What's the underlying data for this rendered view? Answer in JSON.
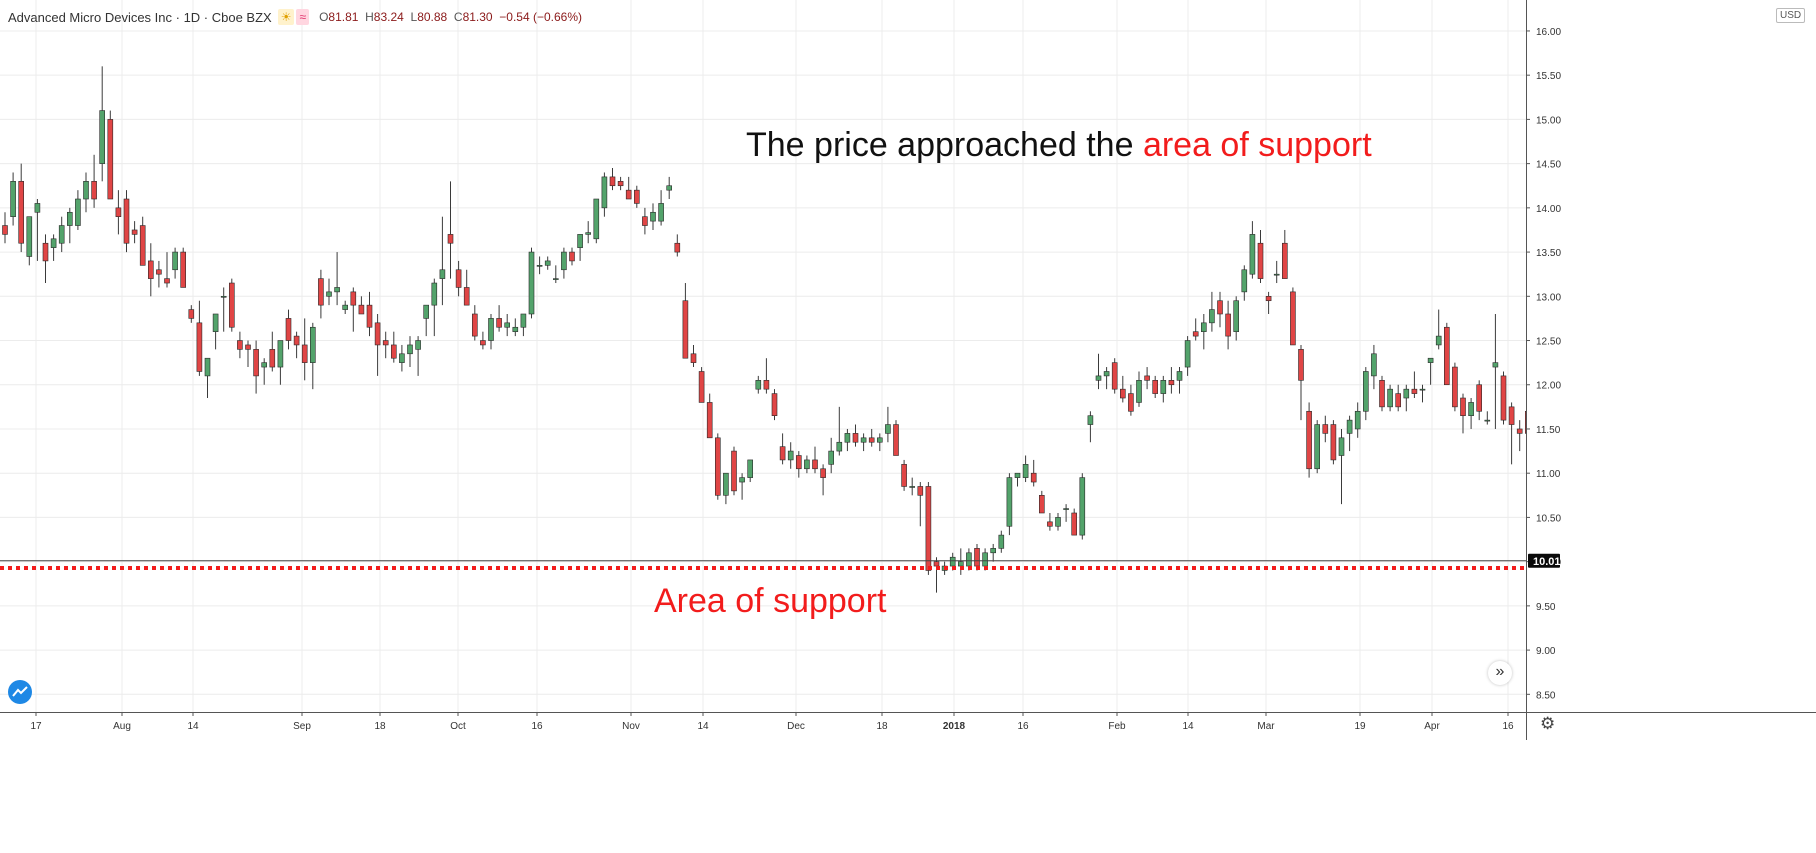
{
  "header": {
    "symbol": "Advanced Micro Devices Inc · 1D · Cboe BZX",
    "sun_icon": "sun-icon",
    "wave_icon": "wave-icon",
    "o_key": "O",
    "o_val": "81.81",
    "h_key": "H",
    "h_val": "83.24",
    "l_key": "L",
    "l_val": "80.88",
    "c_key": "C",
    "c_val": "81.30",
    "change": "−0.54 (−0.66%)"
  },
  "currency": "USD",
  "annotations": {
    "top_prefix": "The price approached the ",
    "top_highlight": "area of support",
    "support_label": "Area of support"
  },
  "colors": {
    "up": "#53a36b",
    "down": "#e04545",
    "annotation_red": "#f21c1c"
  },
  "chart_data": {
    "type": "candlestick",
    "ylim": [
      8.3,
      16.35
    ],
    "y_ticks": [
      "8.50",
      "9.00",
      "9.50",
      "10.00",
      "10.50",
      "11.00",
      "11.50",
      "12.00",
      "12.50",
      "13.00",
      "13.50",
      "14.00",
      "14.50",
      "15.00",
      "15.50",
      "16.00"
    ],
    "x_ticks": [
      "17",
      "Aug",
      "14",
      "Sep",
      "18",
      "Oct",
      "16",
      "Nov",
      "14",
      "Dec",
      "18",
      "2018",
      "16",
      "Feb",
      "14",
      "Mar",
      "19",
      "Apr",
      "16"
    ],
    "last_price": 10.01,
    "last_price_label": "10.01",
    "support_level": 9.95,
    "support_zone": {
      "from_bar": 236,
      "to_bar": 256,
      "low": 9.0,
      "high": 10.62
    },
    "candles": [
      [
        13.8,
        13.95,
        13.6,
        13.7
      ],
      [
        13.9,
        14.4,
        13.8,
        14.3
      ],
      [
        14.3,
        14.5,
        13.5,
        13.6
      ],
      [
        13.45,
        13.9,
        13.35,
        13.9
      ],
      [
        13.95,
        14.1,
        13.4,
        14.05
      ],
      [
        13.6,
        13.7,
        13.15,
        13.4
      ],
      [
        13.55,
        13.7,
        13.4,
        13.65
      ],
      [
        13.6,
        13.9,
        13.5,
        13.8
      ],
      [
        13.8,
        14.0,
        13.6,
        13.95
      ],
      [
        13.8,
        14.2,
        13.75,
        14.1
      ],
      [
        14.1,
        14.4,
        13.95,
        14.3
      ],
      [
        14.3,
        14.6,
        14.0,
        14.1
      ],
      [
        14.5,
        15.6,
        14.3,
        15.1
      ],
      [
        15.0,
        15.1,
        14.1,
        14.1
      ],
      [
        14.0,
        14.2,
        13.7,
        13.9
      ],
      [
        14.1,
        14.2,
        13.5,
        13.6
      ],
      [
        13.75,
        13.85,
        13.6,
        13.7
      ],
      [
        13.8,
        13.9,
        13.35,
        13.35
      ],
      [
        13.4,
        13.6,
        13.0,
        13.2
      ],
      [
        13.3,
        13.4,
        13.1,
        13.25
      ],
      [
        13.2,
        13.5,
        13.1,
        13.15
      ],
      [
        13.3,
        13.55,
        13.2,
        13.5
      ],
      [
        13.5,
        13.55,
        13.1,
        13.1
      ],
      [
        12.85,
        12.9,
        12.7,
        12.75
      ],
      [
        12.7,
        12.95,
        12.1,
        12.15
      ],
      [
        12.1,
        12.3,
        11.85,
        12.3
      ],
      [
        12.6,
        12.8,
        12.4,
        12.8
      ],
      [
        13.0,
        13.1,
        12.6,
        13.0
      ],
      [
        13.15,
        13.2,
        12.6,
        12.65
      ],
      [
        12.5,
        12.6,
        12.3,
        12.4
      ],
      [
        12.45,
        12.5,
        12.2,
        12.4
      ],
      [
        12.4,
        12.5,
        11.9,
        12.1
      ],
      [
        12.2,
        12.3,
        12.0,
        12.25
      ],
      [
        12.4,
        12.6,
        12.15,
        12.2
      ],
      [
        12.2,
        12.5,
        12.0,
        12.5
      ],
      [
        12.75,
        12.85,
        12.4,
        12.5
      ],
      [
        12.55,
        12.6,
        12.3,
        12.45
      ],
      [
        12.45,
        12.75,
        12.05,
        12.25
      ],
      [
        12.25,
        12.7,
        11.95,
        12.65
      ],
      [
        13.2,
        13.3,
        12.75,
        12.9
      ],
      [
        13.0,
        13.2,
        12.9,
        13.05
      ],
      [
        13.05,
        13.5,
        12.9,
        13.1
      ],
      [
        12.85,
        12.95,
        12.8,
        12.9
      ],
      [
        13.05,
        13.1,
        12.6,
        12.9
      ],
      [
        12.9,
        13.0,
        12.8,
        12.8
      ],
      [
        12.9,
        13.05,
        12.55,
        12.65
      ],
      [
        12.7,
        12.8,
        12.1,
        12.45
      ],
      [
        12.5,
        12.6,
        12.3,
        12.45
      ],
      [
        12.45,
        12.6,
        12.25,
        12.3
      ],
      [
        12.25,
        12.45,
        12.15,
        12.35
      ],
      [
        12.35,
        12.55,
        12.2,
        12.45
      ],
      [
        12.4,
        12.55,
        12.1,
        12.5
      ],
      [
        12.75,
        12.85,
        12.55,
        12.9
      ],
      [
        12.9,
        13.2,
        12.55,
        13.15
      ],
      [
        13.2,
        13.9,
        12.9,
        13.3
      ],
      [
        13.7,
        14.3,
        13.2,
        13.6
      ],
      [
        13.3,
        13.4,
        13.0,
        13.1
      ],
      [
        13.1,
        13.3,
        12.9,
        12.9
      ],
      [
        12.8,
        12.9,
        12.5,
        12.55
      ],
      [
        12.5,
        12.6,
        12.4,
        12.45
      ],
      [
        12.5,
        12.8,
        12.4,
        12.75
      ],
      [
        12.75,
        12.9,
        12.6,
        12.65
      ],
      [
        12.65,
        12.8,
        12.55,
        12.7
      ],
      [
        12.6,
        12.75,
        12.55,
        12.65
      ],
      [
        12.65,
        12.8,
        12.55,
        12.8
      ],
      [
        12.8,
        13.55,
        12.75,
        13.5
      ],
      [
        13.35,
        13.45,
        13.25,
        13.35
      ],
      [
        13.35,
        13.45,
        13.3,
        13.4
      ],
      [
        13.2,
        13.35,
        13.15,
        13.2
      ],
      [
        13.3,
        13.55,
        13.2,
        13.5
      ],
      [
        13.5,
        13.55,
        13.35,
        13.4
      ],
      [
        13.55,
        13.7,
        13.4,
        13.7
      ],
      [
        13.7,
        13.85,
        13.6,
        13.72
      ],
      [
        13.65,
        14.1,
        13.6,
        14.1
      ],
      [
        14.0,
        14.4,
        13.9,
        14.35
      ],
      [
        14.35,
        14.45,
        14.2,
        14.25
      ],
      [
        14.3,
        14.35,
        14.2,
        14.25
      ],
      [
        14.2,
        14.35,
        14.1,
        14.1
      ],
      [
        14.2,
        14.25,
        14.0,
        14.05
      ],
      [
        13.9,
        14.0,
        13.7,
        13.8
      ],
      [
        13.85,
        14.05,
        13.75,
        13.95
      ],
      [
        13.85,
        14.2,
        13.8,
        14.05
      ],
      [
        14.2,
        14.35,
        14.1,
        14.25
      ],
      [
        13.6,
        13.7,
        13.45,
        13.5
      ],
      [
        12.95,
        13.15,
        12.3,
        12.3
      ],
      [
        12.35,
        12.45,
        12.2,
        12.25
      ],
      [
        12.15,
        12.2,
        11.8,
        11.8
      ],
      [
        11.8,
        11.9,
        11.4,
        11.4
      ],
      [
        11.4,
        11.45,
        10.7,
        10.75
      ],
      [
        10.75,
        11.0,
        10.65,
        11.0
      ],
      [
        11.25,
        11.3,
        10.75,
        10.8
      ],
      [
        10.9,
        11.0,
        10.7,
        10.95
      ],
      [
        10.95,
        11.15,
        10.9,
        11.15
      ],
      [
        11.95,
        12.1,
        11.9,
        12.05
      ],
      [
        12.05,
        12.3,
        11.9,
        11.95
      ],
      [
        11.9,
        11.95,
        11.6,
        11.65
      ],
      [
        11.3,
        11.45,
        11.1,
        11.15
      ],
      [
        11.15,
        11.35,
        11.05,
        11.25
      ],
      [
        11.2,
        11.25,
        10.95,
        11.05
      ],
      [
        11.05,
        11.2,
        11.0,
        11.15
      ],
      [
        11.15,
        11.3,
        11.0,
        11.05
      ],
      [
        11.05,
        11.1,
        10.75,
        10.95
      ],
      [
        11.1,
        11.4,
        11.0,
        11.25
      ],
      [
        11.25,
        11.75,
        11.2,
        11.35
      ],
      [
        11.35,
        11.5,
        11.25,
        11.45
      ],
      [
        11.45,
        11.55,
        11.3,
        11.35
      ],
      [
        11.35,
        11.45,
        11.25,
        11.4
      ],
      [
        11.4,
        11.5,
        11.3,
        11.35
      ],
      [
        11.35,
        11.45,
        11.25,
        11.4
      ],
      [
        11.45,
        11.75,
        11.35,
        11.55
      ],
      [
        11.55,
        11.6,
        11.25,
        11.2
      ],
      [
        11.1,
        11.15,
        10.8,
        10.85
      ],
      [
        10.85,
        10.95,
        10.75,
        10.85
      ],
      [
        10.85,
        10.9,
        10.4,
        10.75
      ],
      [
        10.85,
        10.9,
        9.85,
        9.9
      ],
      [
        10.0,
        10.05,
        9.65,
        9.95
      ],
      [
        9.9,
        10.0,
        9.85,
        9.95
      ],
      [
        9.95,
        10.1,
        9.9,
        10.05
      ],
      [
        9.95,
        10.15,
        9.85,
        10.0
      ],
      [
        9.95,
        10.15,
        9.9,
        10.1
      ],
      [
        10.15,
        10.2,
        9.9,
        9.95
      ],
      [
        9.95,
        10.15,
        9.9,
        10.1
      ],
      [
        10.1,
        10.2,
        10.0,
        10.15
      ],
      [
        10.15,
        10.35,
        10.1,
        10.3
      ],
      [
        10.4,
        11.0,
        10.3,
        10.95
      ],
      [
        10.95,
        11.0,
        10.85,
        11.0
      ],
      [
        10.95,
        11.2,
        10.9,
        11.1
      ],
      [
        11.0,
        11.15,
        10.85,
        10.9
      ],
      [
        10.75,
        10.8,
        10.55,
        10.55
      ],
      [
        10.45,
        10.55,
        10.35,
        10.4
      ],
      [
        10.4,
        10.55,
        10.35,
        10.5
      ],
      [
        10.6,
        10.65,
        10.45,
        10.6
      ],
      [
        10.55,
        10.6,
        10.3,
        10.3
      ],
      [
        10.3,
        11.0,
        10.25,
        10.95
      ],
      [
        11.55,
        11.7,
        11.35,
        11.65
      ],
      [
        12.05,
        12.35,
        11.95,
        12.1
      ],
      [
        12.1,
        12.2,
        11.95,
        12.15
      ],
      [
        12.25,
        12.3,
        11.9,
        11.95
      ],
      [
        11.95,
        12.1,
        11.8,
        11.85
      ],
      [
        11.9,
        12.0,
        11.65,
        11.7
      ],
      [
        11.8,
        12.15,
        11.75,
        12.05
      ],
      [
        12.1,
        12.2,
        11.95,
        12.05
      ],
      [
        12.05,
        12.1,
        11.85,
        11.9
      ],
      [
        11.9,
        12.1,
        11.8,
        12.05
      ],
      [
        12.05,
        12.2,
        11.9,
        12.0
      ],
      [
        12.05,
        12.2,
        11.9,
        12.15
      ],
      [
        12.2,
        12.55,
        12.1,
        12.5
      ],
      [
        12.6,
        12.75,
        12.5,
        12.55
      ],
      [
        12.6,
        12.8,
        12.4,
        12.7
      ],
      [
        12.7,
        13.05,
        12.6,
        12.85
      ],
      [
        12.95,
        13.05,
        12.65,
        12.8
      ],
      [
        12.8,
        12.95,
        12.4,
        12.55
      ],
      [
        12.6,
        13.0,
        12.5,
        12.95
      ],
      [
        13.05,
        13.35,
        12.95,
        13.3
      ],
      [
        13.25,
        13.85,
        13.2,
        13.7
      ],
      [
        13.6,
        13.75,
        13.15,
        13.2
      ],
      [
        13.0,
        13.05,
        12.8,
        12.95
      ],
      [
        13.25,
        13.4,
        13.15,
        13.25
      ],
      [
        13.6,
        13.75,
        13.2,
        13.2
      ],
      [
        13.05,
        13.1,
        12.45,
        12.45
      ],
      [
        12.4,
        12.45,
        11.6,
        12.05
      ],
      [
        11.7,
        11.8,
        10.95,
        11.05
      ],
      [
        11.05,
        11.6,
        11.0,
        11.55
      ],
      [
        11.55,
        11.65,
        11.35,
        11.45
      ],
      [
        11.55,
        11.6,
        11.1,
        11.15
      ],
      [
        11.2,
        11.5,
        10.65,
        11.4
      ],
      [
        11.45,
        11.65,
        11.25,
        11.6
      ],
      [
        11.5,
        11.8,
        11.4,
        11.7
      ],
      [
        11.7,
        12.2,
        11.6,
        12.15
      ],
      [
        12.1,
        12.45,
        11.95,
        12.35
      ],
      [
        12.05,
        12.1,
        11.7,
        11.75
      ],
      [
        11.75,
        12.0,
        11.7,
        11.95
      ],
      [
        11.9,
        12.0,
        11.7,
        11.75
      ],
      [
        11.85,
        12.0,
        11.7,
        11.95
      ],
      [
        11.95,
        12.15,
        11.85,
        11.9
      ],
      [
        11.95,
        12.0,
        11.8,
        11.95
      ],
      [
        12.25,
        12.3,
        12.0,
        12.3
      ],
      [
        12.45,
        12.85,
        12.4,
        12.55
      ],
      [
        12.65,
        12.7,
        12.0,
        12.0
      ],
      [
        12.2,
        12.25,
        11.7,
        11.75
      ],
      [
        11.85,
        11.9,
        11.45,
        11.65
      ],
      [
        11.65,
        11.85,
        11.5,
        11.8
      ],
      [
        12.0,
        12.05,
        11.6,
        11.7
      ],
      [
        11.6,
        11.7,
        11.55,
        11.6
      ],
      [
        12.2,
        12.8,
        11.5,
        12.25
      ],
      [
        12.1,
        12.15,
        11.55,
        11.6
      ],
      [
        11.75,
        11.8,
        11.1,
        11.55
      ],
      [
        11.5,
        11.6,
        11.25,
        11.45
      ],
      [
        11.7,
        11.75,
        11.4,
        11.45
      ],
      [
        11.45,
        11.6,
        11.1,
        11.25
      ],
      [
        11.45,
        11.5,
        11.35,
        11.45
      ],
      [
        11.5,
        11.55,
        11.4,
        11.5
      ],
      [
        11.45,
        11.55,
        11.25,
        11.45
      ],
      [
        11.4,
        11.45,
        11.0,
        11.15
      ],
      [
        11.15,
        11.3,
        11.05,
        11.2
      ],
      [
        11.15,
        11.2,
        10.95,
        11.05
      ],
      [
        11.05,
        11.1,
        10.8,
        10.9
      ],
      [
        10.85,
        10.95,
        10.65,
        10.65
      ],
      [
        10.65,
        10.75,
        10.25,
        10.4
      ],
      [
        10.35,
        10.45,
        10.0,
        10.2
      ],
      [
        9.95,
        10.0,
        9.75,
        9.8
      ],
      [
        9.8,
        10.1,
        9.75,
        10.05
      ],
      [
        10.05,
        10.1,
        9.5,
        9.55
      ],
      [
        9.55,
        9.65,
        9.25,
        9.65
      ],
      [
        9.75,
        9.8,
        9.05,
        9.1
      ],
      [
        9.95,
        10.05,
        9.9,
        10.0
      ],
      [
        9.8,
        9.85,
        9.5,
        9.55
      ],
      [
        9.75,
        9.8,
        9.5,
        9.55
      ],
      [
        9.75,
        10.0,
        9.7,
        9.95
      ],
      [
        9.75,
        9.85,
        9.7,
        9.8
      ],
      [
        9.85,
        10.1,
        9.8,
        10.05
      ],
      [
        9.85,
        10.05,
        9.8,
        9.95
      ],
      [
        10.2,
        10.25,
        9.9,
        9.95
      ],
      [
        9.95,
        10.1,
        9.9,
        10.05
      ],
      [
        10.25,
        10.55,
        10.15,
        10.5
      ]
    ]
  }
}
